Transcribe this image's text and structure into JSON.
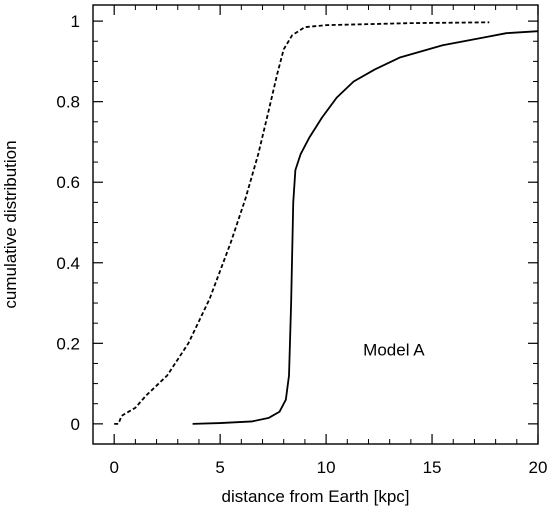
{
  "chart_data": {
    "type": "line",
    "title": "",
    "xlabel": "distance from Earth [kpc]",
    "ylabel": "cumulative distribution",
    "xlim": [
      -1,
      20
    ],
    "ylim": [
      -0.05,
      1.04
    ],
    "x_ticks": [
      0,
      5,
      10,
      15,
      20
    ],
    "x_tick_labels": [
      "0",
      "5",
      "10",
      "15",
      "20"
    ],
    "y_ticks": [
      0,
      0.2,
      0.4,
      0.6,
      0.8,
      1
    ],
    "y_tick_labels": [
      "0",
      "0.2",
      "0.4",
      "0.6",
      "0.8",
      "1"
    ],
    "minor_x_step": 1,
    "minor_y_step": 0.05,
    "grid": false,
    "legend": "none",
    "annotations": [
      {
        "text": "Model A",
        "x": 13.2,
        "y": 0.17
      }
    ],
    "series": [
      {
        "style": "dashed",
        "color": "#000000",
        "points": [
          [
            0,
            0
          ],
          [
            0.2,
            0
          ],
          [
            0.35,
            0.02
          ],
          [
            1,
            0.04
          ],
          [
            1.5,
            0.07
          ],
          [
            2.5,
            0.12
          ],
          [
            3.5,
            0.2
          ],
          [
            4.5,
            0.31
          ],
          [
            5.5,
            0.45
          ],
          [
            6.2,
            0.56
          ],
          [
            6.8,
            0.67
          ],
          [
            7.3,
            0.78
          ],
          [
            7.7,
            0.87
          ],
          [
            8.0,
            0.93
          ],
          [
            8.4,
            0.965
          ],
          [
            9.0,
            0.985
          ],
          [
            10.0,
            0.99
          ],
          [
            14.0,
            0.995
          ],
          [
            17.7,
            0.997
          ]
        ]
      },
      {
        "style": "solid",
        "color": "#000000",
        "points": [
          [
            3.7,
            0.0
          ],
          [
            5.0,
            0.002
          ],
          [
            6.5,
            0.006
          ],
          [
            7.3,
            0.015
          ],
          [
            7.8,
            0.03
          ],
          [
            8.1,
            0.06
          ],
          [
            8.25,
            0.12
          ],
          [
            8.35,
            0.3
          ],
          [
            8.45,
            0.55
          ],
          [
            8.55,
            0.63
          ],
          [
            8.8,
            0.67
          ],
          [
            9.2,
            0.71
          ],
          [
            9.8,
            0.76
          ],
          [
            10.5,
            0.81
          ],
          [
            11.3,
            0.85
          ],
          [
            12.3,
            0.88
          ],
          [
            13.5,
            0.91
          ],
          [
            15.5,
            0.94
          ],
          [
            17.5,
            0.96
          ],
          [
            18.5,
            0.97
          ],
          [
            20.0,
            0.975
          ]
        ]
      }
    ]
  }
}
